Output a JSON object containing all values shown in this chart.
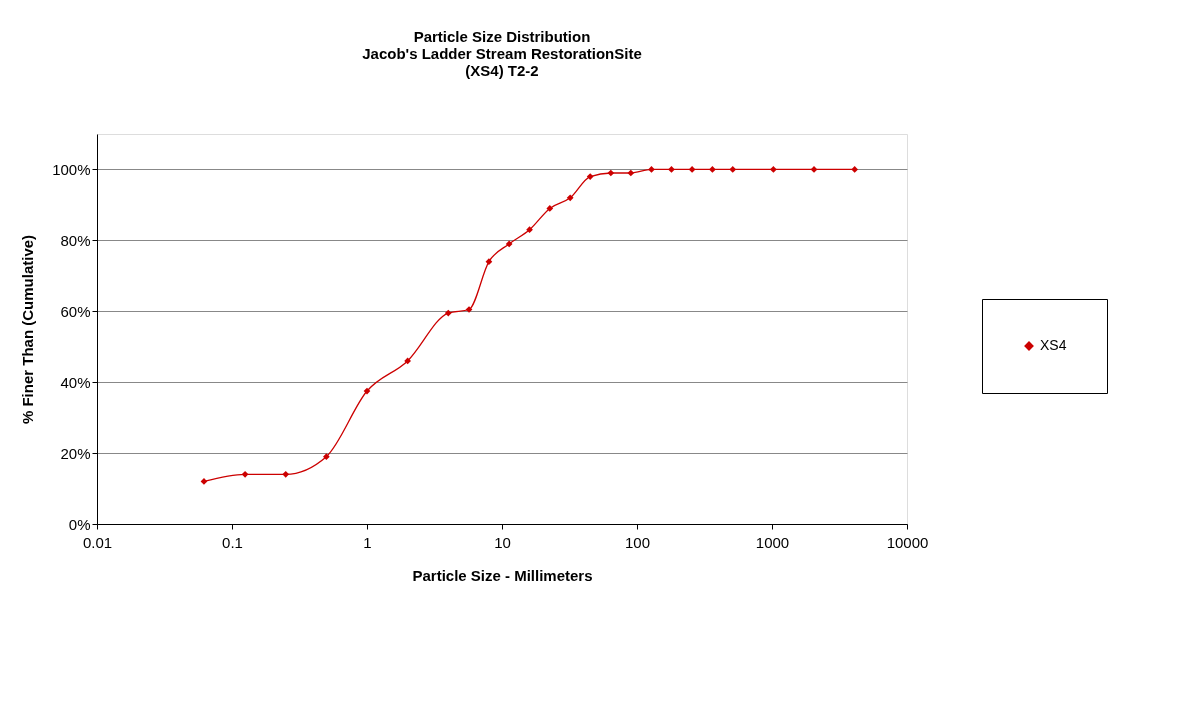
{
  "chart_data": {
    "type": "line",
    "title": "Particle Size Distribution\nJacob's Ladder Stream RestorationSite\n(XS4) T2-2",
    "xlabel": "Particle Size - Millimeters",
    "ylabel": "% Finer Than (Cumulative)",
    "x": [
      0.062,
      0.125,
      0.25,
      0.5,
      1,
      2,
      4,
      5.7,
      8,
      11.3,
      16,
      22.6,
      32,
      45,
      64,
      90,
      128,
      180,
      256,
      362,
      512,
      1024,
      2048,
      4096
    ],
    "series": [
      {
        "name": "XS4",
        "color": "#cc0000",
        "values": [
          12,
          14,
          14,
          19,
          37.5,
          46,
          59.5,
          60.5,
          74,
          79,
          83,
          89,
          92,
          98,
          99,
          99,
          100,
          100,
          100,
          100,
          100,
          100,
          100,
          100
        ]
      }
    ],
    "log": "x",
    "xlim": [
      0.01,
      10000
    ],
    "xticks": [
      0.01,
      0.1,
      1,
      10,
      100,
      1000,
      10000
    ],
    "ylim": [
      0,
      110
    ],
    "yticks": [
      {
        "value": 0,
        "label": "0%"
      },
      {
        "value": 20,
        "label": "20%"
      },
      {
        "value": 40,
        "label": "40%"
      },
      {
        "value": 60,
        "label": "60%"
      },
      {
        "value": 80,
        "label": "80%"
      },
      {
        "value": 100,
        "label": "100%"
      }
    ],
    "grid": "y",
    "legend": "right",
    "marker": "diamond",
    "line_style": "solid"
  }
}
